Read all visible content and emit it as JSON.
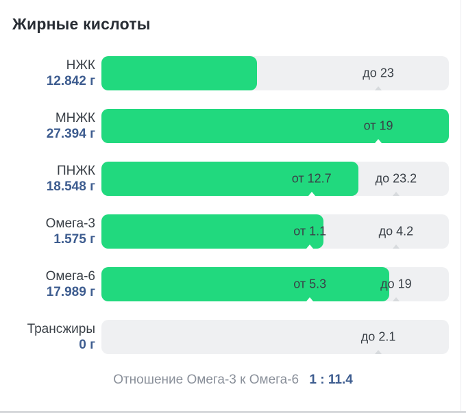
{
  "title": "Жирные кислоты",
  "footer": {
    "label": "Отношение Омега-3 к Омега-6",
    "value": "1 : 11.4"
  },
  "colors": {
    "fill_green": "#21d97e",
    "track_gray": "#eff0f2",
    "value_blue": "#3d5c8f",
    "label_dark": "#3a4047",
    "footer_gray": "#8a909a"
  },
  "chart_data": {
    "type": "bar",
    "orientation": "horizontal",
    "unit": "г",
    "title": "Жирные кислоты",
    "ratio_note": {
      "label": "Отношение Омега-3 к Омега-6",
      "value": "1 : 11.4"
    },
    "rows": [
      {
        "name": "НЖК",
        "value_text": "12.842 г",
        "amount": 12.842,
        "fill_pct": 44.8,
        "markers": [
          {
            "text": "до 23",
            "type": "max",
            "value": 23,
            "pos_pct": 79.7,
            "on": "track"
          }
        ]
      },
      {
        "name": "МНЖК",
        "value_text": "27.394 г",
        "amount": 27.394,
        "fill_pct": 100,
        "markers": [
          {
            "text": "от 19",
            "type": "min",
            "value": 19,
            "pos_pct": 79.7,
            "on": "fill"
          }
        ]
      },
      {
        "name": "ПНЖК",
        "value_text": "18.548 г",
        "amount": 18.548,
        "fill_pct": 74,
        "markers": [
          {
            "text": "от 12.7",
            "type": "min",
            "value": 12.7,
            "pos_pct": 60.5,
            "on": "fill"
          },
          {
            "text": "до 23.2",
            "type": "max",
            "value": 23.2,
            "pos_pct": 84.8,
            "on": "track"
          }
        ]
      },
      {
        "name": "Омега-3",
        "value_text": "1.575 г",
        "amount": 1.575,
        "fill_pct": 63.9,
        "markers": [
          {
            "text": "от 1.1",
            "type": "min",
            "value": 1.1,
            "pos_pct": 60,
            "on": "fill"
          },
          {
            "text": "до 4.2",
            "type": "max",
            "value": 4.2,
            "pos_pct": 84.8,
            "on": "track"
          }
        ]
      },
      {
        "name": "Омега-6",
        "value_text": "17.989 г",
        "amount": 17.989,
        "fill_pct": 82.8,
        "markers": [
          {
            "text": "от 5.3",
            "type": "min",
            "value": 5.3,
            "pos_pct": 60,
            "on": "fill"
          },
          {
            "text": "до 19",
            "type": "max",
            "value": 19,
            "pos_pct": 84.8,
            "on": "track"
          }
        ]
      },
      {
        "name": "Трансжиры",
        "value_text": "0 г",
        "amount": 0,
        "fill_pct": 0,
        "markers": [
          {
            "text": "до 2.1",
            "type": "max",
            "value": 2.1,
            "pos_pct": 79.7,
            "on": "track"
          }
        ]
      }
    ]
  }
}
